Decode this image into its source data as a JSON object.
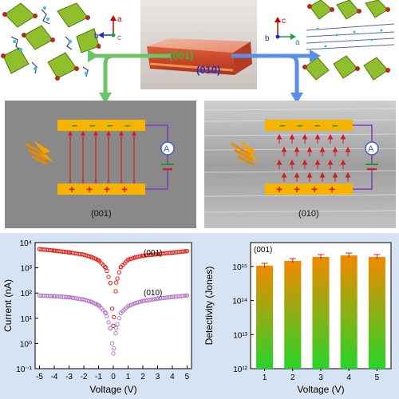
{
  "top": {
    "crystal_face_labels": [
      "(001)",
      "(010)"
    ],
    "axes_left": {
      "a": "a",
      "b": "b",
      "c": "c"
    },
    "axes_right": {
      "c": "c",
      "b": "b",
      "a": "a"
    },
    "colors": {
      "arrow_green": "#6cc46a",
      "arrow_blue": "#5b8ee6",
      "octahedron_green": "#8fbf2c"
    }
  },
  "middle": {
    "left_caption": "(001)",
    "right_caption": "(010)",
    "minus_sign": "−",
    "plus_sign": "+",
    "ammeter_label": "A",
    "colors": {
      "electrode": "#f6b400",
      "field": "#cf1f1f",
      "wire": "#7b3fb0",
      "ammeter": "#3a5fd0"
    }
  },
  "chart_data": [
    {
      "type": "scatter",
      "title": "",
      "xlabel": "Voltage (V)",
      "ylabel": "Current (nA)",
      "xlim": [
        -5.3,
        5.3
      ],
      "ylim": [
        0.1,
        10000
      ],
      "yscale": "log",
      "x_ticks": [
        -5,
        -4,
        -3,
        -2,
        -1,
        0,
        1,
        2,
        3,
        4,
        5
      ],
      "y_ticks": [
        "10⁻¹",
        "10⁰",
        "10¹",
        "10²",
        "10³",
        "10⁴"
      ],
      "annotations": [
        "(001)",
        "(010)"
      ],
      "series": [
        {
          "label": "(001)",
          "color": "#e8231b",
          "x": [
            -5,
            -4,
            -3,
            -2,
            -1.5,
            -1,
            -0.5,
            -0.2,
            0,
            0.2,
            0.5,
            1,
            1.5,
            2,
            3,
            4,
            5
          ],
          "y": [
            5500,
            4800,
            4100,
            3300,
            2700,
            2000,
            1000,
            250,
            5,
            260,
            1050,
            2100,
            2600,
            3000,
            3500,
            4000,
            4600
          ]
        },
        {
          "label": "(010)",
          "color": "#b77ac8",
          "x": [
            -5,
            -4,
            -3,
            -2,
            -1.5,
            -1,
            -0.5,
            -0.2,
            0,
            0.2,
            0.5,
            1,
            1.5,
            2,
            3,
            4,
            5
          ],
          "y": [
            80,
            75,
            68,
            55,
            45,
            33,
            16,
            4,
            0.4,
            4,
            16,
            30,
            40,
            48,
            60,
            70,
            80
          ]
        }
      ]
    },
    {
      "type": "bar",
      "title": "",
      "xlabel": "Voltage (V)",
      "ylabel": "Detectivity (Jones)",
      "categories": [
        "1",
        "2",
        "3",
        "4",
        "5"
      ],
      "values": [
        1050000000000000.0,
        1450000000000000.0,
        1900000000000000.0,
        2100000000000000.0,
        1900000000000000.0
      ],
      "ylim": [
        1000000000000.0,
        5000000000000000.0
      ],
      "yscale": "log",
      "y_ticks": [
        "10¹²",
        "10¹³",
        "10¹⁴",
        "10¹⁵"
      ],
      "annotations": [
        "(001)"
      ],
      "bar_gradient": [
        "#f08a00",
        "#28d42a"
      ]
    }
  ]
}
